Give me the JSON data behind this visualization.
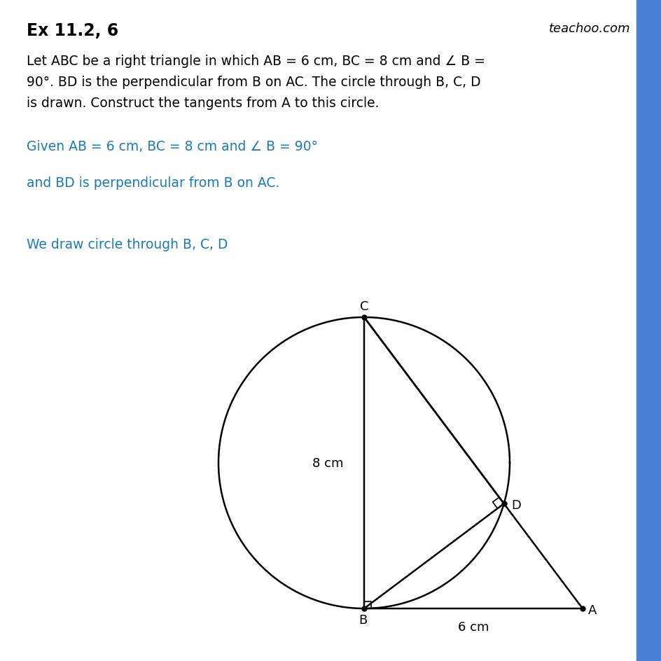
{
  "title": "Ex 11.2, 6",
  "watermark": "teachoo.com",
  "title_color": "#000000",
  "watermark_color": "#000000",
  "text_black": "#000000",
  "text_blue": "#1a7abf",
  "line1": "Let ABC be a right triangle in which AB = 6 cm, BC = 8 cm and ∠ B =",
  "line2": "90°. BD is the perpendicular from B on AC. The circle through B, C, D",
  "line3": "is drawn. Construct the tangents from A to this circle.",
  "given_text": "Given AB = 6 cm, BC = 8 cm and ∠ B = 90°",
  "given_text2": "and BD is perpendicular from B on AC.",
  "circle_text": "We draw circle through B, C, D",
  "label_8cm": "8 cm",
  "label_6cm": "6 cm",
  "sidebar_color": "#4a7fd4",
  "background_color": "#ffffff"
}
